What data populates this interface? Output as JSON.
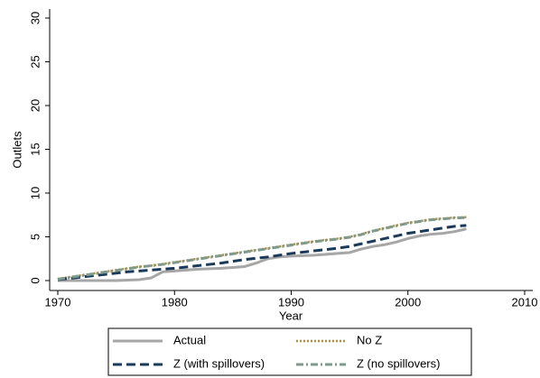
{
  "chart_data": {
    "type": "line",
    "x": [
      1970,
      1971,
      1972,
      1973,
      1974,
      1975,
      1976,
      1977,
      1978,
      1979,
      1980,
      1981,
      1982,
      1983,
      1984,
      1985,
      1986,
      1987,
      1988,
      1989,
      1990,
      1991,
      1992,
      1993,
      1994,
      1995,
      1996,
      1997,
      1998,
      1999,
      2000,
      2001,
      2002,
      2003,
      2004,
      2005
    ],
    "series": [
      {
        "name": "Actual",
        "color": "#a6a6a6",
        "dash": "",
        "width": 3,
        "values": [
          0,
          0,
          0,
          0,
          0,
          0,
          0.05,
          0.1,
          0.3,
          1.0,
          1.1,
          1.2,
          1.3,
          1.35,
          1.4,
          1.5,
          1.6,
          2.0,
          2.5,
          2.7,
          2.8,
          2.85,
          2.9,
          3.0,
          3.1,
          3.2,
          3.6,
          3.9,
          4.1,
          4.4,
          4.8,
          5.1,
          5.3,
          5.4,
          5.6,
          5.9
        ]
      },
      {
        "name": "No Z",
        "color": "#b08a3e",
        "dash": "2 2",
        "width": 2.5,
        "values": [
          0.2,
          0.4,
          0.6,
          0.8,
          1.0,
          1.2,
          1.4,
          1.6,
          1.7,
          1.9,
          2.1,
          2.3,
          2.5,
          2.7,
          2.9,
          3.1,
          3.3,
          3.5,
          3.7,
          3.9,
          4.1,
          4.3,
          4.5,
          4.65,
          4.8,
          5.0,
          5.3,
          5.7,
          6.0,
          6.3,
          6.6,
          6.8,
          7.0,
          7.1,
          7.2,
          7.25
        ]
      },
      {
        "name": "Z (with spillovers)",
        "color": "#1b3a5a",
        "dash": "10 5",
        "width": 3,
        "values": [
          0.1,
          0.25,
          0.4,
          0.55,
          0.7,
          0.85,
          1.0,
          1.1,
          1.2,
          1.3,
          1.4,
          1.55,
          1.7,
          1.85,
          2.0,
          2.2,
          2.4,
          2.55,
          2.7,
          2.9,
          3.1,
          3.25,
          3.4,
          3.55,
          3.7,
          3.9,
          4.2,
          4.5,
          4.8,
          5.1,
          5.4,
          5.6,
          5.8,
          6.0,
          6.2,
          6.3
        ]
      },
      {
        "name": "Z (no spillovers)",
        "color": "#7d9a8c",
        "dash": "8 3 2 3",
        "width": 3,
        "values": [
          0.15,
          0.35,
          0.55,
          0.75,
          0.95,
          1.15,
          1.35,
          1.55,
          1.7,
          1.85,
          2.05,
          2.25,
          2.45,
          2.65,
          2.85,
          3.05,
          3.25,
          3.45,
          3.65,
          3.85,
          4.05,
          4.25,
          4.45,
          4.6,
          4.75,
          4.95,
          5.25,
          5.65,
          5.95,
          6.25,
          6.55,
          6.75,
          6.95,
          7.05,
          7.15,
          7.2
        ]
      }
    ],
    "xlabel": "Year",
    "ylabel": "Outlets",
    "xlim": [
      1970,
      2010
    ],
    "xticks": [
      1970,
      1980,
      1990,
      2000,
      2010
    ],
    "ylim": [
      0,
      30
    ],
    "yticks": [
      0,
      5,
      10,
      15,
      20,
      25,
      30
    ]
  }
}
